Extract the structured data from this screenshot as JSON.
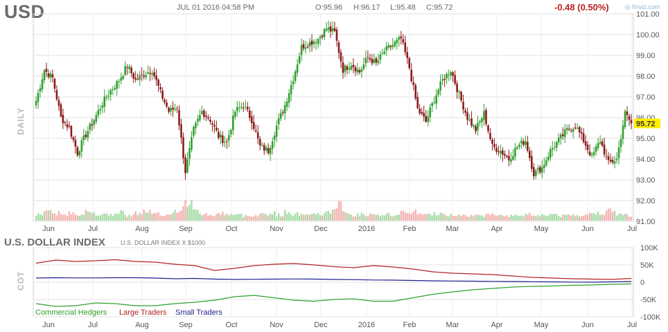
{
  "header": {
    "ticker": "USD",
    "datetime": "JUL 01 2016 04:58 PM",
    "open": "O:95.96",
    "high": "H:96.17",
    "low": "L:95.48",
    "close": "C:95.72",
    "change": "-0.48 (0.50%)",
    "brand": "finviz.com"
  },
  "labels": {
    "daily": "DAILY",
    "cot": "COT",
    "index_name": "U.S. DOLLAR INDEX",
    "index_sub": "U.S. DOLLAR INDEX X $1000"
  },
  "colors": {
    "up": "#2ea02e",
    "down": "#8b1a1a",
    "vol_up": "#a8dca8",
    "vol_down": "#f4b4b4",
    "grid": "#e2e2e2",
    "last_price_bg": "#ffee00"
  },
  "chart_data": [
    {
      "type": "candlestick",
      "ylim": [
        91,
        101
      ],
      "yticks": [
        "101.00",
        "100.00",
        "99.00",
        "98.00",
        "97.00",
        "96.00",
        "95.00",
        "94.00",
        "93.00",
        "92.00",
        "91.00"
      ],
      "xticks": [
        "Jun",
        "Jul",
        "Aug",
        "Sep",
        "Oct",
        "Nov",
        "Dec",
        "2016",
        "Feb",
        "Mar",
        "Apr",
        "May",
        "Jun",
        "Jul"
      ],
      "last_price": "95.72",
      "grid": true,
      "close_path": [
        [
          0,
          96.8
        ],
        [
          4,
          98.3
        ],
        [
          8,
          97.9
        ],
        [
          12,
          96.0
        ],
        [
          16,
          95.5
        ],
        [
          20,
          94.3
        ],
        [
          24,
          95.2
        ],
        [
          28,
          95.9
        ],
        [
          32,
          96.7
        ],
        [
          36,
          97.3
        ],
        [
          40,
          97.8
        ],
        [
          44,
          98.5
        ],
        [
          48,
          97.8
        ],
        [
          52,
          98.1
        ],
        [
          56,
          98.3
        ],
        [
          60,
          97.2
        ],
        [
          64,
          96.3
        ],
        [
          68,
          96.5
        ],
        [
          72,
          93.4
        ],
        [
          76,
          95.4
        ],
        [
          80,
          96.3
        ],
        [
          84,
          95.9
        ],
        [
          88,
          95.1
        ],
        [
          92,
          94.8
        ],
        [
          96,
          96.3
        ],
        [
          100,
          96.6
        ],
        [
          104,
          95.9
        ],
        [
          108,
          94.6
        ],
        [
          112,
          94.4
        ],
        [
          116,
          95.6
        ],
        [
          120,
          96.6
        ],
        [
          124,
          97.9
        ],
        [
          128,
          99.4
        ],
        [
          132,
          99.6
        ],
        [
          136,
          99.8
        ],
        [
          140,
          100.3
        ],
        [
          144,
          100.1
        ],
        [
          148,
          98.3
        ],
        [
          152,
          98.6
        ],
        [
          156,
          98.2
        ],
        [
          160,
          98.9
        ],
        [
          164,
          98.6
        ],
        [
          168,
          99.2
        ],
        [
          172,
          99.5
        ],
        [
          176,
          99.8
        ],
        [
          180,
          98.4
        ],
        [
          184,
          96.4
        ],
        [
          188,
          95.8
        ],
        [
          192,
          96.9
        ],
        [
          196,
          97.8
        ],
        [
          200,
          98.3
        ],
        [
          204,
          97.1
        ],
        [
          208,
          96.0
        ],
        [
          212,
          95.4
        ],
        [
          216,
          96.2
        ],
        [
          220,
          94.6
        ],
        [
          224,
          94.4
        ],
        [
          228,
          94.0
        ],
        [
          232,
          94.6
        ],
        [
          236,
          94.9
        ],
        [
          240,
          93.3
        ],
        [
          244,
          93.6
        ],
        [
          248,
          94.4
        ],
        [
          252,
          94.9
        ],
        [
          256,
          95.4
        ],
        [
          260,
          95.6
        ],
        [
          264,
          94.9
        ],
        [
          268,
          94.1
        ],
        [
          272,
          94.9
        ],
        [
          276,
          93.8
        ],
        [
          280,
          94.0
        ],
        [
          284,
          96.2
        ],
        [
          287,
          95.72
        ]
      ],
      "volume_profile": [
        0.35,
        0.55,
        0.4,
        0.3,
        0.45,
        0.35,
        0.5,
        0.4,
        0.3,
        0.35,
        0.45,
        0.3,
        0.4,
        0.5,
        0.35,
        0.3,
        0.45,
        0.6,
        1.0,
        0.5,
        0.35,
        0.3,
        0.4,
        0.35,
        0.3,
        0.25,
        0.3,
        0.35,
        0.4,
        0.3,
        0.45,
        0.35,
        0.4,
        0.3,
        0.35,
        0.45,
        0.9,
        0.4,
        0.3,
        0.35,
        0.3,
        0.25,
        0.35,
        0.3,
        0.4,
        0.5,
        0.35,
        0.3,
        0.4,
        0.3,
        0.3,
        0.35,
        0.3,
        0.25,
        0.3,
        0.35,
        0.3,
        0.25,
        0.3,
        0.35,
        0.3,
        0.3,
        0.35,
        0.25,
        0.3,
        0.3,
        0.35,
        0.4,
        0.45,
        0.5,
        0.35,
        0.3
      ]
    },
    {
      "type": "line",
      "ylim": [
        -100000,
        100000
      ],
      "yticks": [
        "100K",
        "50K",
        "0",
        "-50K",
        "-100K"
      ],
      "xticks": [
        "Jun",
        "Jul",
        "Aug",
        "Sep",
        "Oct",
        "Nov",
        "Dec",
        "2016",
        "Feb",
        "Mar",
        "Apr",
        "May",
        "Jun",
        "Jul"
      ],
      "series": [
        {
          "name": "Commercial Hedgers",
          "color": "#2ea02e",
          "values": [
            -62000,
            -70000,
            -68000,
            -60000,
            -62000,
            -68000,
            -68000,
            -62000,
            -58000,
            -52000,
            -42000,
            -38000,
            -45000,
            -52000,
            -55000,
            -50000,
            -48000,
            -55000,
            -55000,
            -45000,
            -35000,
            -28000,
            -22000,
            -18000,
            -14000,
            -12000,
            -11000,
            -9000,
            -8000,
            -6000,
            -5000
          ]
        },
        {
          "name": "Large Traders",
          "color": "#b22222",
          "values": [
            55000,
            64000,
            60000,
            62000,
            65000,
            60000,
            58000,
            52000,
            48000,
            34000,
            40000,
            48000,
            52000,
            54000,
            50000,
            45000,
            42000,
            48000,
            44000,
            38000,
            30000,
            26000,
            24000,
            22000,
            18000,
            14000,
            12000,
            10000,
            9000,
            8000,
            11000
          ]
        },
        {
          "name": "Small Traders",
          "color": "#1f1f8f",
          "values": [
            12000,
            13000,
            12500,
            12500,
            13000,
            13000,
            12000,
            10000,
            11000,
            9000,
            8000,
            8500,
            9000,
            9500,
            9000,
            8000,
            7500,
            6500,
            6000,
            5000,
            4000,
            3500,
            3000,
            2500,
            2000,
            1500,
            1000,
            500,
            0,
            1000,
            2000
          ]
        }
      ]
    }
  ]
}
